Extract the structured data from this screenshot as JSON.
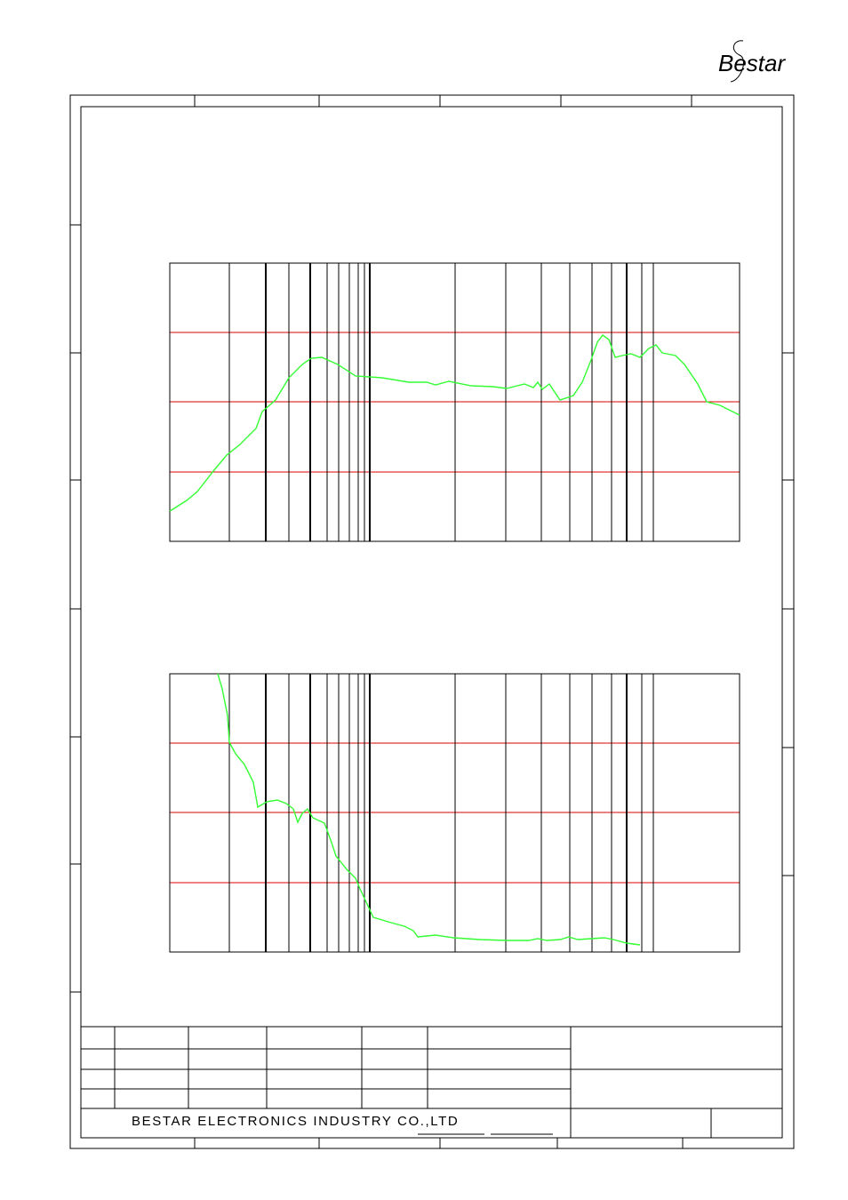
{
  "logo": "Bestar",
  "footer": {
    "company": "BESTAR ELECTRONICS INDUSTRY CO.,LTD"
  }
}
